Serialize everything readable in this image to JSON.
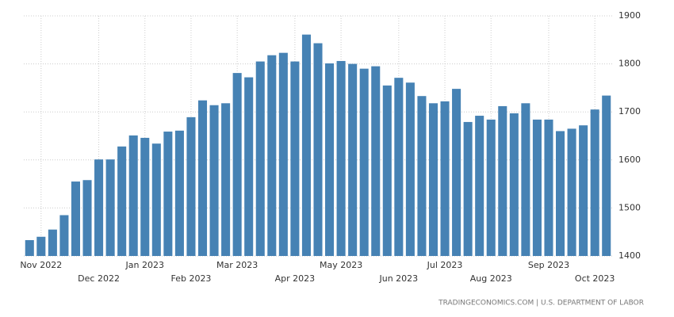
{
  "chart_data": {
    "type": "bar",
    "categories": [
      null,
      "Nov 2022",
      null,
      null,
      null,
      null,
      "Dec 2022",
      null,
      null,
      null,
      "Jan 2023",
      null,
      null,
      null,
      "Feb 2023",
      null,
      null,
      null,
      "Mar 2023",
      null,
      null,
      null,
      null,
      "Apr 2023",
      null,
      null,
      null,
      "May 2023",
      null,
      null,
      null,
      null,
      "Jun 2023",
      null,
      null,
      null,
      "Jul 2023",
      null,
      null,
      null,
      "Aug 2023",
      null,
      null,
      null,
      null,
      "Sep 2023",
      null,
      null,
      null,
      "Oct 2023",
      null
    ],
    "values": [
      1433,
      1440,
      1455,
      1485,
      1555,
      1558,
      1601,
      1601,
      1628,
      1651,
      1646,
      1634,
      1659,
      1661,
      1689,
      1724,
      1714,
      1718,
      1781,
      1772,
      1805,
      1818,
      1823,
      1805,
      1861,
      1843,
      1801,
      1806,
      1800,
      1790,
      1795,
      1755,
      1771,
      1761,
      1733,
      1718,
      1722,
      1748,
      1679,
      1692,
      1684,
      1712,
      1697,
      1718,
      1684,
      1684,
      1660,
      1665,
      1672,
      1705,
      1734
    ],
    "color": "#4682b4",
    "ylim": [
      1400,
      1900
    ],
    "yticks": [
      1400,
      1500,
      1600,
      1700,
      1800,
      1900
    ],
    "grid": true,
    "source": "TRADINGECONOMICS.COM | U.S. DEPARTMENT OF LABOR"
  }
}
